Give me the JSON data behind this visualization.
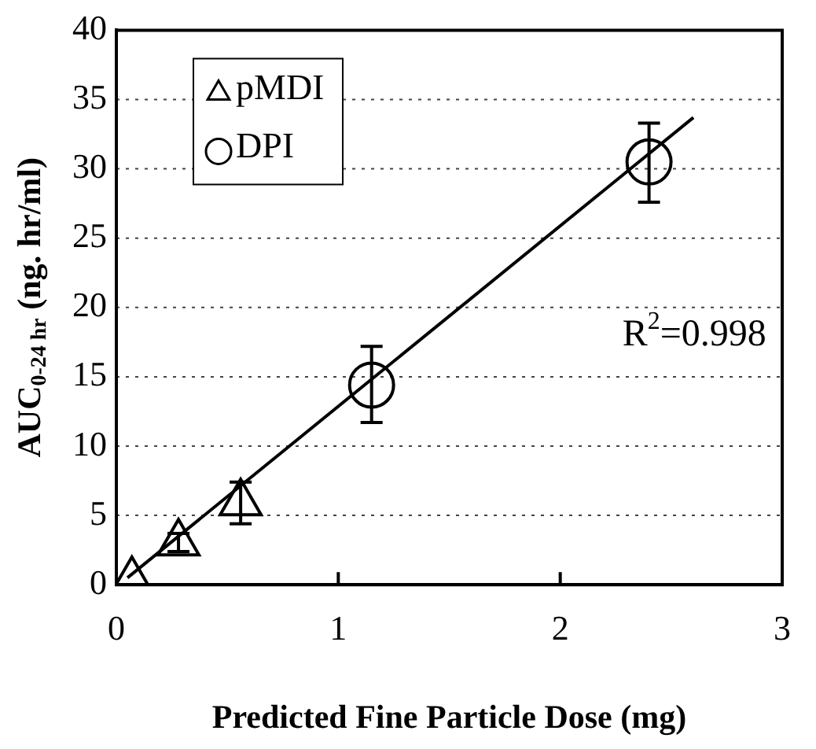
{
  "chart_data": {
    "type": "scatter",
    "xlabel": "Predicted Fine Particle Dose (mg)",
    "ylabel": "AUC$_{0-24 hr}$ (ng. hr/ml)",
    "xlim": [
      0,
      3
    ],
    "xticks": [
      0,
      1,
      2,
      3
    ],
    "ylim": [
      0,
      40
    ],
    "yticks": [
      0,
      5,
      10,
      15,
      20,
      25,
      30,
      35,
      40
    ],
    "grid": "y",
    "legend": "top left",
    "annotations": [
      "R$^{2}$=0.998"
    ],
    "series": [
      {
        "name": "pMDI",
        "marker": "triangle",
        "color": "#000000",
        "x": [
          0.07,
          0.28,
          0.56
        ],
        "values": [
          0.3,
          3.0,
          5.9
        ],
        "errors": [
          null,
          [
            2.4,
            3.7
          ],
          [
            4.4,
            7.4
          ]
        ]
      },
      {
        "name": "DPI",
        "marker": "circle",
        "color": "#000000",
        "x": [
          1.15,
          2.4
        ],
        "values": [
          14.4,
          30.5
        ],
        "errors": [
          [
            11.7,
            17.2
          ],
          [
            27.6,
            33.3
          ]
        ]
      },
      {
        "type": "line",
        "marker": "none",
        "line_style": "solid",
        "color": "#000000",
        "x": [
          0.05,
          2.6
        ],
        "values": [
          0.5,
          33.7
        ]
      }
    ]
  }
}
